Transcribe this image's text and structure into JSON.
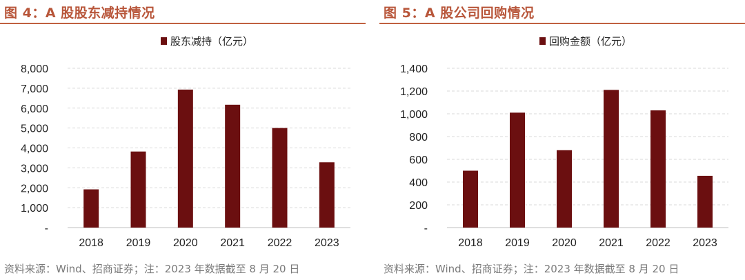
{
  "colors": {
    "bar": "#6b0f10",
    "title": "#b8563a",
    "rule": "#c0603f",
    "grid": "#d9d9d9",
    "source": "#7a7a7a"
  },
  "panels": [
    {
      "title": "图 4：A 股股东减持情况",
      "source": "资料来源：Wind、招商证券；注：2023 年数据截至 8 月 20 日"
    },
    {
      "title": "图 5：A 股公司回购情况",
      "source": "资料来源：Wind、招商证券；注：2023 年数据截至 8 月 20 日"
    }
  ],
  "chart_data": [
    {
      "type": "bar",
      "categories": [
        "2018",
        "2019",
        "2020",
        "2021",
        "2022",
        "2023"
      ],
      "series": [
        {
          "name": "股东减持（亿元）",
          "values": [
            1920,
            3820,
            6930,
            6170,
            5000,
            3280
          ]
        }
      ],
      "ylim": [
        0,
        8000
      ],
      "yticks": [
        0,
        1000,
        2000,
        3000,
        4000,
        5000,
        6000,
        7000,
        8000
      ],
      "ytick_labels": [
        "-",
        "1,000",
        "2,000",
        "3,000",
        "4,000",
        "5,000",
        "6,000",
        "7,000",
        "8,000"
      ],
      "grid": true,
      "legend": "top-center"
    },
    {
      "type": "bar",
      "categories": [
        "2018",
        "2019",
        "2020",
        "2021",
        "2022",
        "2023"
      ],
      "series": [
        {
          "name": "回购金额（亿元）",
          "values": [
            500,
            1010,
            680,
            1210,
            1030,
            455
          ]
        }
      ],
      "ylim": [
        0,
        1400
      ],
      "yticks": [
        0,
        200,
        400,
        600,
        800,
        1000,
        1200,
        1400
      ],
      "ytick_labels": [
        "-",
        "200",
        "400",
        "600",
        "800",
        "1,000",
        "1,200",
        "1,400"
      ],
      "grid": true,
      "legend": "top-center"
    }
  ]
}
